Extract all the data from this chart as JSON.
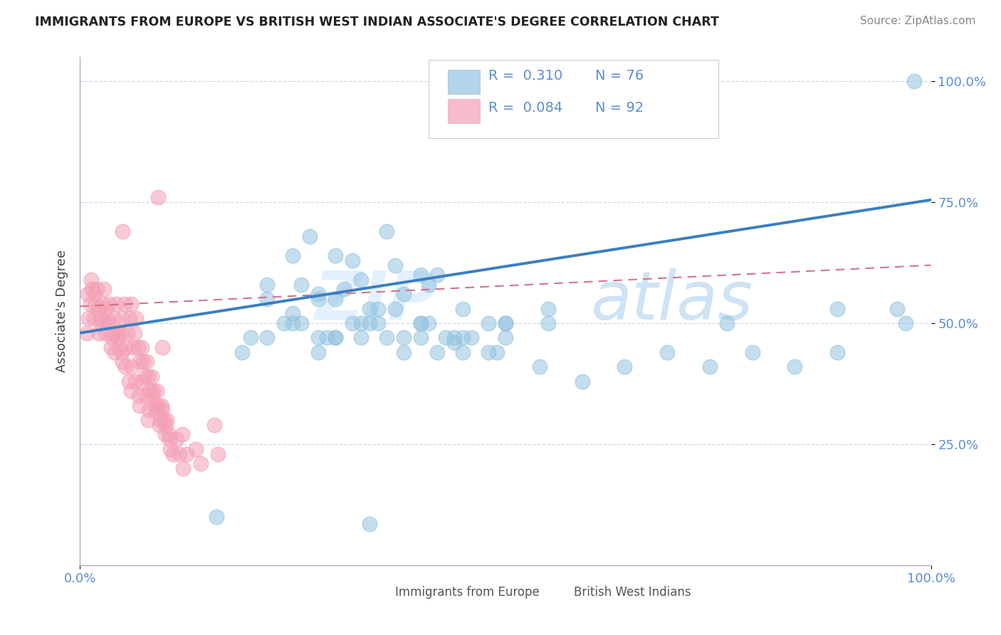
{
  "title": "IMMIGRANTS FROM EUROPE VS BRITISH WEST INDIAN ASSOCIATE'S DEGREE CORRELATION CHART",
  "source": "Source: ZipAtlas.com",
  "ylabel": "Associate's Degree",
  "blue_color": "#94c4e0",
  "pink_color": "#f4a0b5",
  "line_blue": "#3a7fc1",
  "line_pink_color": "#d4728a",
  "watermark_zip": "ZIP",
  "watermark_atlas": "atlas",
  "legend_box_color": "#94c4e0",
  "legend_box_pink": "#f4a0b5",
  "ytick_color": "#5b8dd9",
  "xtick_color": "#5b8dd9",
  "blue_scatter_x": [
    0.34,
    0.19,
    0.25,
    0.27,
    0.3,
    0.22,
    0.28,
    0.32,
    0.36,
    0.4,
    0.26,
    0.3,
    0.33,
    0.37,
    0.41,
    0.22,
    0.25,
    0.28,
    0.31,
    0.34,
    0.38,
    0.42,
    0.25,
    0.29,
    0.33,
    0.37,
    0.41,
    0.45,
    0.2,
    0.24,
    0.28,
    0.32,
    0.36,
    0.4,
    0.44,
    0.48,
    0.22,
    0.26,
    0.3,
    0.34,
    0.38,
    0.42,
    0.46,
    0.5,
    0.3,
    0.35,
    0.4,
    0.45,
    0.5,
    0.55,
    0.28,
    0.33,
    0.38,
    0.43,
    0.48,
    0.35,
    0.4,
    0.45,
    0.5,
    0.55,
    0.16,
    0.44,
    0.49,
    0.54,
    0.59,
    0.64,
    0.69,
    0.74,
    0.79,
    0.84,
    0.89,
    0.76,
    0.89,
    0.96,
    0.97,
    0.98
  ],
  "blue_scatter_y": [
    0.085,
    0.44,
    0.64,
    0.68,
    0.64,
    0.58,
    0.56,
    0.63,
    0.69,
    0.6,
    0.58,
    0.55,
    0.59,
    0.62,
    0.58,
    0.55,
    0.52,
    0.55,
    0.57,
    0.53,
    0.56,
    0.6,
    0.5,
    0.47,
    0.5,
    0.53,
    0.5,
    0.53,
    0.47,
    0.5,
    0.47,
    0.5,
    0.47,
    0.5,
    0.47,
    0.5,
    0.47,
    0.5,
    0.47,
    0.5,
    0.47,
    0.44,
    0.47,
    0.5,
    0.47,
    0.5,
    0.47,
    0.44,
    0.47,
    0.5,
    0.44,
    0.47,
    0.44,
    0.47,
    0.44,
    0.53,
    0.5,
    0.47,
    0.5,
    0.53,
    0.1,
    0.46,
    0.44,
    0.41,
    0.38,
    0.41,
    0.44,
    0.41,
    0.44,
    0.41,
    0.44,
    0.5,
    0.53,
    0.53,
    0.5,
    1.0
  ],
  "pink_scatter_x": [
    0.008,
    0.01,
    0.012,
    0.014,
    0.016,
    0.018,
    0.02,
    0.022,
    0.024,
    0.026,
    0.028,
    0.03,
    0.032,
    0.034,
    0.036,
    0.038,
    0.04,
    0.042,
    0.044,
    0.046,
    0.048,
    0.05,
    0.052,
    0.054,
    0.056,
    0.058,
    0.06,
    0.062,
    0.064,
    0.066,
    0.068,
    0.07,
    0.072,
    0.074,
    0.076,
    0.078,
    0.08,
    0.082,
    0.084,
    0.086,
    0.088,
    0.09,
    0.092,
    0.094,
    0.096,
    0.098,
    0.1,
    0.102,
    0.104,
    0.106,
    0.009,
    0.013,
    0.017,
    0.021,
    0.025,
    0.029,
    0.033,
    0.037,
    0.041,
    0.045,
    0.049,
    0.053,
    0.057,
    0.061,
    0.065,
    0.069,
    0.073,
    0.077,
    0.081,
    0.085,
    0.089,
    0.093,
    0.097,
    0.101,
    0.105,
    0.109,
    0.113,
    0.117,
    0.121,
    0.125,
    0.05,
    0.092,
    0.158,
    0.162,
    0.05,
    0.097,
    0.06,
    0.07,
    0.08,
    0.12,
    0.136,
    0.142
  ],
  "pink_scatter_y": [
    0.48,
    0.51,
    0.54,
    0.57,
    0.51,
    0.54,
    0.57,
    0.48,
    0.51,
    0.54,
    0.57,
    0.48,
    0.51,
    0.54,
    0.45,
    0.48,
    0.51,
    0.54,
    0.48,
    0.45,
    0.48,
    0.51,
    0.54,
    0.45,
    0.48,
    0.51,
    0.54,
    0.45,
    0.48,
    0.51,
    0.45,
    0.42,
    0.45,
    0.42,
    0.39,
    0.42,
    0.39,
    0.36,
    0.39,
    0.36,
    0.33,
    0.36,
    0.33,
    0.3,
    0.33,
    0.3,
    0.27,
    0.3,
    0.27,
    0.24,
    0.56,
    0.59,
    0.56,
    0.53,
    0.5,
    0.53,
    0.5,
    0.47,
    0.44,
    0.47,
    0.44,
    0.41,
    0.38,
    0.41,
    0.38,
    0.35,
    0.38,
    0.35,
    0.32,
    0.35,
    0.32,
    0.29,
    0.32,
    0.29,
    0.26,
    0.23,
    0.26,
    0.23,
    0.2,
    0.23,
    0.69,
    0.76,
    0.29,
    0.23,
    0.42,
    0.45,
    0.36,
    0.33,
    0.3,
    0.27,
    0.24,
    0.21
  ],
  "blue_line_x0": 0.0,
  "blue_line_y0": 0.48,
  "blue_line_x1": 1.0,
  "blue_line_y1": 0.755,
  "pink_line_x0": 0.0,
  "pink_line_y0": 0.535,
  "pink_line_x1": 1.0,
  "pink_line_y1": 0.62,
  "xlim": [
    0.0,
    1.0
  ],
  "ylim": [
    0.0,
    1.05
  ],
  "ytick_positions": [
    0.25,
    0.5,
    0.75,
    1.0
  ],
  "ytick_labels": [
    "25.0%",
    "50.0%",
    "75.0%",
    "100.0%"
  ],
  "xtick_positions": [
    0.0,
    1.0
  ],
  "xtick_labels": [
    "0.0%",
    "100.0%"
  ]
}
